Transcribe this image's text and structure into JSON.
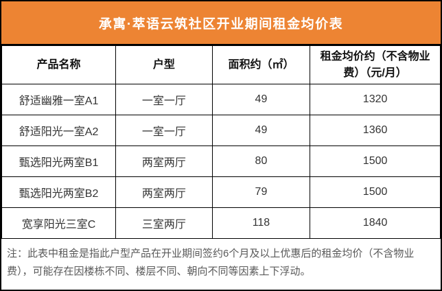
{
  "title": "承寓·萃语云筑社区开业期间租金均价表",
  "table": {
    "headers": [
      "产品名称",
      "户型",
      "面积约（㎡）",
      "租金均价约（不含物业费）（元/月）"
    ],
    "rows": [
      [
        "舒适幽雅一室A1",
        "一室一厅",
        "49",
        "1320"
      ],
      [
        "舒适阳光一室A2",
        "一室一厅",
        "49",
        "1360"
      ],
      [
        "甄选阳光两室B1",
        "两室两厅",
        "80",
        "1500"
      ],
      [
        "甄选阳光两室B2",
        "两室两厅",
        "79",
        "1500"
      ],
      [
        "宽享阳光三室C",
        "三室两厅",
        "118",
        "1840"
      ]
    ]
  },
  "note": "注：此表中租金是指此户型产品在开业期间签约6个月及以上优惠后的租金均价（不含物业费），可能存在因楼栋不同、楼层不同、朝向不同等因素上下浮动。",
  "colors": {
    "accent_orange": "#ED8433",
    "border_black": "#000000",
    "title_text": "#FFFFFF",
    "header_text": "#111111",
    "cell_text": "#333333",
    "note_text": "#595959"
  }
}
